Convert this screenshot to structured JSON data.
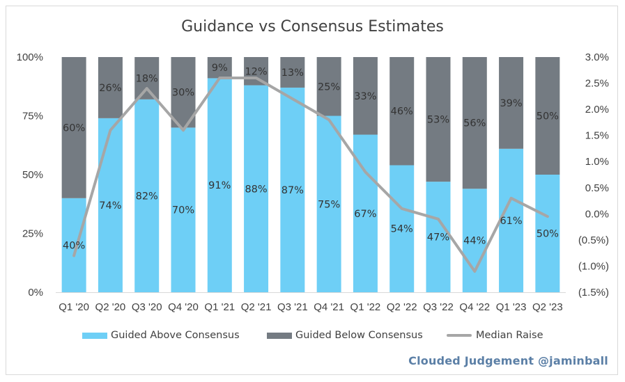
{
  "chart_data": {
    "type": "bar",
    "title": "Guidance vs Consensus Estimates",
    "categories": [
      "Q1 '20",
      "Q2 '20",
      "Q3 '20",
      "Q4 '20",
      "Q1 '21",
      "Q2 '21",
      "Q3 '21",
      "Q4 '21",
      "Q1 '22",
      "Q2 '22",
      "Q3 '22",
      "Q4 '22",
      "Q1 '23",
      "Q2 '23"
    ],
    "series": [
      {
        "name": "Guided Above Consensus",
        "kind": "stacked-bar",
        "axis": "left",
        "color": "#6ecff6",
        "values": [
          40,
          74,
          82,
          70,
          91,
          88,
          87,
          75,
          67,
          54,
          47,
          44,
          61,
          50
        ],
        "labels": [
          "40%",
          "74%",
          "82%",
          "70%",
          "91%",
          "88%",
          "87%",
          "75%",
          "67%",
          "54%",
          "47%",
          "44%",
          "61%",
          "50%"
        ]
      },
      {
        "name": "Guided Below Consensus",
        "kind": "stacked-bar",
        "axis": "left",
        "color": "#747b82",
        "values": [
          60,
          26,
          18,
          30,
          9,
          12,
          13,
          25,
          33,
          46,
          53,
          56,
          39,
          50
        ],
        "labels": [
          "60%",
          "26%",
          "18%",
          "30%",
          "9%",
          "12%",
          "13%",
          "25%",
          "33%",
          "46%",
          "53%",
          "56%",
          "39%",
          "50%"
        ]
      },
      {
        "name": "Median Raise",
        "kind": "line",
        "axis": "right",
        "color": "#a6a6a6",
        "values": [
          -0.8,
          1.6,
          2.4,
          1.6,
          2.6,
          2.6,
          2.2,
          1.8,
          0.8,
          0.1,
          -0.1,
          -1.1,
          0.3,
          -0.05
        ]
      }
    ],
    "y_left": {
      "ticks": [
        0,
        25,
        50,
        75,
        100
      ],
      "tick_labels": [
        "0%",
        "25%",
        "50%",
        "75%",
        "100%"
      ],
      "ylim": [
        0,
        100
      ]
    },
    "y_right": {
      "ticks": [
        -1.5,
        -1.0,
        -0.5,
        0,
        0.5,
        1.0,
        1.5,
        2.0,
        2.5,
        3.0
      ],
      "tick_labels": [
        "(1.5%)",
        "(1.0%)",
        "(0.5%)",
        "0.0%",
        "0.5%",
        "1.0%",
        "1.5%",
        "2.0%",
        "2.5%",
        "3.0%"
      ],
      "ylim": [
        -1.5,
        3.0
      ]
    },
    "grid": false,
    "legend_position": "bottom"
  },
  "legend": {
    "items": [
      {
        "label": "Guided Above Consensus",
        "color": "#6ecff6"
      },
      {
        "label": "Guided Below Consensus",
        "color": "#747b82"
      },
      {
        "label": "Median Raise",
        "color": "#a6a6a6"
      }
    ]
  },
  "credit": "Clouded Judgement @jaminball"
}
